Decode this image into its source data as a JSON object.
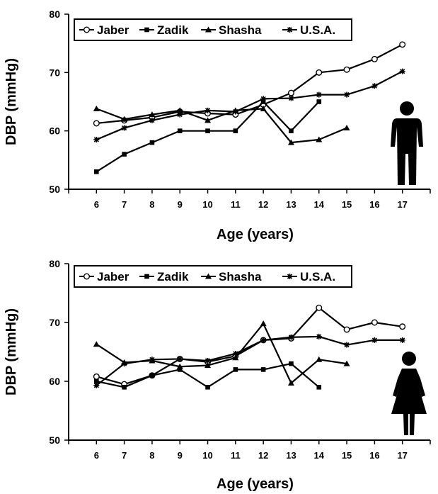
{
  "chart_data": [
    {
      "type": "line",
      "xlabel": "Age (years)",
      "ylabel": "DBP (mmHg)",
      "x": [
        6,
        7,
        8,
        9,
        10,
        11,
        12,
        13,
        14,
        15,
        16,
        17
      ],
      "xlim": [
        5,
        18
      ],
      "ylim": [
        50,
        80
      ],
      "yticks": [
        50,
        60,
        70,
        80
      ],
      "legend_position": "top",
      "figure_icon": "male-figure-icon",
      "series": [
        {
          "name": "Jaber",
          "marker": "open-circle",
          "values": [
            61.3,
            61.8,
            62.3,
            63.3,
            63.0,
            62.8,
            64.5,
            66.5,
            70.0,
            70.5,
            72.3,
            74.8
          ]
        },
        {
          "name": "Zadik",
          "marker": "square",
          "values": [
            53.0,
            56.0,
            58.0,
            60.0,
            60.0,
            60.0,
            65.0,
            60.0,
            65.0,
            null,
            null,
            null
          ]
        },
        {
          "name": "Shasha",
          "marker": "triangle",
          "values": [
            63.8,
            62.0,
            62.8,
            63.5,
            61.8,
            63.5,
            63.8,
            58.0,
            58.5,
            60.5,
            null,
            null
          ]
        },
        {
          "name": "U.S.A.",
          "marker": "star",
          "values": [
            58.5,
            60.5,
            61.8,
            62.8,
            63.5,
            63.3,
            65.5,
            65.6,
            66.2,
            66.2,
            67.7,
            70.2
          ]
        }
      ]
    },
    {
      "type": "line",
      "xlabel": "Age (years)",
      "ylabel": "DBP (mmHg)",
      "x": [
        6,
        7,
        8,
        9,
        10,
        11,
        12,
        13,
        14,
        15,
        16,
        17
      ],
      "xlim": [
        5,
        18
      ],
      "ylim": [
        50,
        80
      ],
      "yticks": [
        50,
        60,
        70,
        80
      ],
      "legend_position": "top",
      "figure_icon": "female-figure-icon",
      "series": [
        {
          "name": "Jaber",
          "marker": "open-circle",
          "values": [
            60.8,
            59.5,
            61.0,
            63.8,
            63.3,
            64.3,
            67.0,
            67.3,
            72.5,
            68.8,
            70.0,
            69.3
          ]
        },
        {
          "name": "Zadik",
          "marker": "square",
          "values": [
            60.0,
            59.0,
            61.0,
            62.0,
            59.0,
            62.0,
            62.0,
            63.0,
            59.0,
            null,
            null,
            null
          ]
        },
        {
          "name": "Shasha",
          "marker": "triangle",
          "values": [
            66.3,
            63.2,
            63.5,
            62.5,
            62.7,
            64.0,
            69.8,
            59.7,
            63.7,
            63.0,
            null,
            null
          ]
        },
        {
          "name": "U.S.A.",
          "marker": "star",
          "values": [
            59.3,
            63.0,
            63.7,
            63.8,
            63.5,
            64.7,
            67.0,
            67.5,
            67.6,
            66.2,
            67.0,
            67.0
          ]
        }
      ]
    }
  ]
}
